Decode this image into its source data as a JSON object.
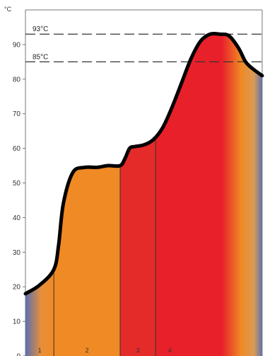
{
  "chart_data": {
    "type": "area",
    "ylabel": "°C",
    "ylim": [
      0,
      100
    ],
    "yticks": [
      0,
      10,
      20,
      30,
      40,
      50,
      60,
      70,
      80,
      90
    ],
    "grid": false,
    "legend": "none",
    "reference_lines": [
      {
        "label": "93°C",
        "value": 93
      },
      {
        "label": "85°C",
        "value": 85
      }
    ],
    "zones": [
      {
        "label": "1",
        "x_start": 0,
        "x_end": 12,
        "fill": "warm-up"
      },
      {
        "label": "2",
        "x_start": 12,
        "x_end": 40,
        "fill": "#f08a24"
      },
      {
        "label": "3",
        "x_start": 40,
        "x_end": 55,
        "fill": "#e52a2a"
      },
      {
        "label": "4",
        "x_start": 55,
        "x_end": 100,
        "fill": "#e8202a"
      }
    ],
    "series": [
      {
        "x": [
          0,
          6,
          12,
          14,
          16,
          20,
          25,
          30,
          35,
          40,
          42,
          44,
          46,
          50,
          54,
          58,
          62,
          66,
          70,
          74,
          78,
          82,
          86,
          90,
          93,
          96,
          100
        ],
        "y": [
          18,
          20.5,
          25,
          32,
          44,
          53,
          54.5,
          54.5,
          55,
          55,
          57,
          60,
          60.5,
          61,
          62.5,
          66,
          72,
          79,
          86,
          91,
          93,
          93,
          92.5,
          89,
          85,
          83,
          81
        ]
      }
    ],
    "colors": {
      "curve": "#000000",
      "blue": "#5b6fb0",
      "orange": "#f08a24",
      "red": "#e8202a",
      "ref_line": "#333333"
    }
  }
}
